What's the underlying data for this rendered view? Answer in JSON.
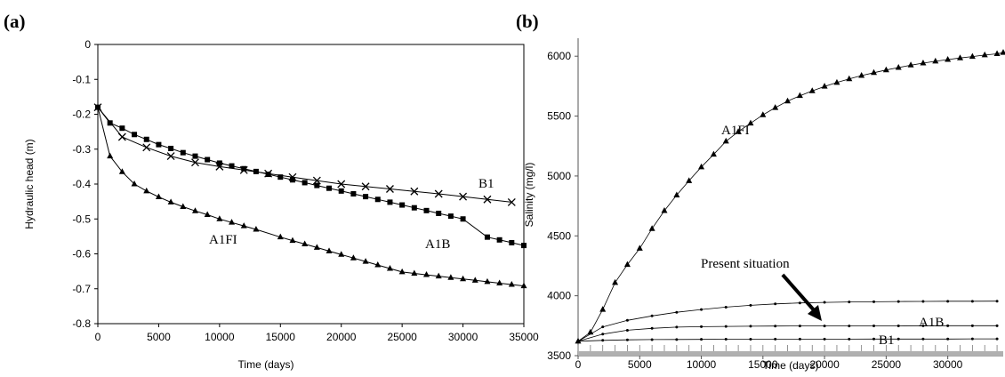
{
  "chart_data": [
    {
      "panel_label": "(a)",
      "type": "line",
      "xlabel": "Time (days)",
      "ylabel": "Hydraulic head (m)",
      "xlim": [
        0,
        35000
      ],
      "ylim": [
        -0.8,
        0
      ],
      "xticks": [
        "0",
        "5000",
        "10000",
        "15000",
        "20000",
        "25000",
        "30000",
        "35000"
      ],
      "yticks": [
        "0",
        "-0.1",
        "-0.2",
        "-0.3",
        "-0.4",
        "-0.5",
        "-0.6",
        "-0.7",
        "-0.8"
      ],
      "grid": false,
      "series": [
        {
          "name": "B1",
          "marker": "cross",
          "x": [
            0,
            2000,
            4000,
            6000,
            8000,
            10000,
            12000,
            14000,
            16000,
            18000,
            20000,
            22000,
            24000,
            26000,
            28000,
            30000,
            32000,
            34000
          ],
          "y": [
            -0.18,
            -0.265,
            -0.295,
            -0.32,
            -0.338,
            -0.35,
            -0.36,
            -0.37,
            -0.38,
            -0.39,
            -0.4,
            -0.407,
            -0.414,
            -0.421,
            -0.428,
            -0.436,
            -0.444,
            -0.452
          ]
        },
        {
          "name": "A1B",
          "marker": "square",
          "x": [
            0,
            1000,
            2000,
            3000,
            4000,
            5000,
            6000,
            7000,
            8000,
            9000,
            10000,
            11000,
            12000,
            13000,
            14000,
            15000,
            16000,
            17000,
            18000,
            19000,
            20000,
            21000,
            22000,
            23000,
            24000,
            25000,
            26000,
            27000,
            28000,
            29000,
            30000,
            32000,
            33000,
            34000,
            35000
          ],
          "y": [
            -0.18,
            -0.225,
            -0.24,
            -0.258,
            -0.272,
            -0.287,
            -0.298,
            -0.31,
            -0.32,
            -0.33,
            -0.34,
            -0.348,
            -0.356,
            -0.364,
            -0.372,
            -0.38,
            -0.388,
            -0.396,
            -0.404,
            -0.412,
            -0.42,
            -0.428,
            -0.436,
            -0.444,
            -0.452,
            -0.46,
            -0.468,
            -0.476,
            -0.484,
            -0.492,
            -0.5,
            -0.552,
            -0.56,
            -0.568,
            -0.576
          ]
        },
        {
          "name": "A1FI",
          "marker": "triangle",
          "x": [
            0,
            1000,
            2000,
            3000,
            4000,
            5000,
            6000,
            7000,
            8000,
            9000,
            10000,
            11000,
            12000,
            13000,
            15000,
            16000,
            17000,
            18000,
            19000,
            20000,
            21000,
            22000,
            23000,
            24000,
            25000,
            26000,
            27000,
            28000,
            29000,
            30000,
            31000,
            32000,
            33000,
            34000,
            35000
          ],
          "y": [
            -0.18,
            -0.32,
            -0.365,
            -0.4,
            -0.42,
            -0.437,
            -0.452,
            -0.465,
            -0.477,
            -0.488,
            -0.5,
            -0.51,
            -0.52,
            -0.53,
            -0.552,
            -0.562,
            -0.572,
            -0.582,
            -0.592,
            -0.602,
            -0.612,
            -0.622,
            -0.632,
            -0.642,
            -0.652,
            -0.656,
            -0.66,
            -0.664,
            -0.668,
            -0.672,
            -0.676,
            -0.68,
            -0.684,
            -0.688,
            -0.692
          ]
        }
      ],
      "annotations": [
        {
          "text": "B1",
          "series": "B1"
        },
        {
          "text": "A1B",
          "series": "A1B"
        },
        {
          "text": "A1FI",
          "series": "A1FI"
        }
      ]
    },
    {
      "panel_label": "(b)",
      "type": "line",
      "xlabel": "Time (days)",
      "ylabel": "Salinity (mg/l)",
      "xlim": [
        0,
        34500
      ],
      "ylim": [
        3500,
        6150
      ],
      "xticks": [
        "0",
        "5000",
        "10000",
        "15000",
        "20000",
        "25000",
        "30000"
      ],
      "yticks": [
        "3500",
        "4000",
        "4500",
        "5000",
        "5500",
        "6000"
      ],
      "grid": false,
      "series": [
        {
          "name": "A1FI",
          "marker": "triangle",
          "x": [
            0,
            1000,
            2000,
            3000,
            4000,
            5000,
            6000,
            7000,
            8000,
            9000,
            10000,
            11000,
            12000,
            13000,
            14000,
            15000,
            16000,
            17000,
            18000,
            19000,
            20000,
            21000,
            22000,
            23000,
            24000,
            25000,
            26000,
            27000,
            28000,
            29000,
            30000,
            31000,
            32000,
            33000,
            34000,
            34500
          ],
          "y": [
            3620,
            3695,
            3885,
            4110,
            4260,
            4395,
            4560,
            4710,
            4840,
            4960,
            5075,
            5180,
            5290,
            5370,
            5440,
            5510,
            5570,
            5625,
            5670,
            5710,
            5748,
            5780,
            5810,
            5838,
            5862,
            5885,
            5905,
            5925,
            5942,
            5958,
            5972,
            5985,
            5997,
            6010,
            6020,
            6030
          ]
        },
        {
          "name": "A1B",
          "marker": "dot",
          "x": [
            0,
            2000,
            4000,
            6000,
            8000,
            10000,
            12000,
            14000,
            16000,
            18000,
            20000,
            22000,
            24000,
            26000,
            28000,
            30000,
            32000,
            34000
          ],
          "y": [
            3620,
            3740,
            3795,
            3832,
            3862,
            3885,
            3905,
            3920,
            3932,
            3940,
            3945,
            3948,
            3950,
            3952,
            3953,
            3954,
            3954,
            3955
          ]
        },
        {
          "name": "B1",
          "marker": "dot",
          "x": [
            0,
            2000,
            4000,
            6000,
            8000,
            10000,
            12000,
            14000,
            16000,
            18000,
            20000,
            22000,
            24000,
            26000,
            28000,
            30000,
            32000,
            34000
          ],
          "y": [
            3620,
            3680,
            3712,
            3728,
            3738,
            3742,
            3744,
            3746,
            3747,
            3748,
            3748,
            3748,
            3749,
            3749,
            3750,
            3750,
            3750,
            3750
          ]
        },
        {
          "name": "Present situation",
          "marker": "dot",
          "x": [
            0,
            2000,
            4000,
            6000,
            8000,
            10000,
            12000,
            14000,
            16000,
            18000,
            20000,
            22000,
            24000,
            26000,
            28000,
            30000,
            32000,
            34000
          ],
          "y": [
            3620,
            3628,
            3632,
            3634,
            3635,
            3636,
            3637,
            3637,
            3638,
            3638,
            3638,
            3638,
            3639,
            3639,
            3639,
            3639,
            3640,
            3640
          ]
        }
      ],
      "annotations": [
        {
          "text": "A1FI",
          "series": "A1FI"
        },
        {
          "text": "A1B",
          "series": "A1B"
        },
        {
          "text": "B1",
          "series": "B1"
        },
        {
          "text": "Present situation",
          "series": "Present situation"
        }
      ]
    }
  ]
}
